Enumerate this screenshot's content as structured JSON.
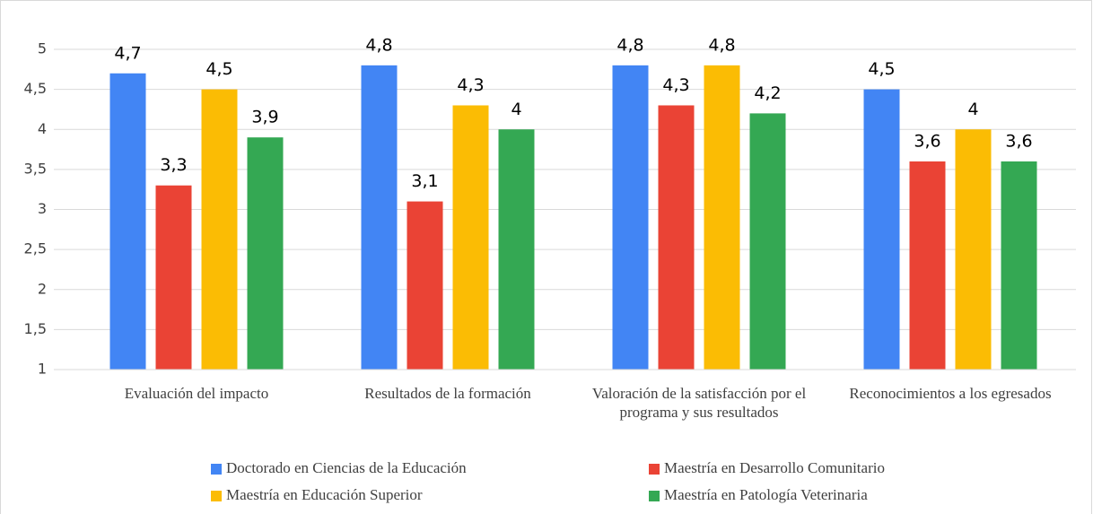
{
  "chart_data": {
    "type": "bar",
    "categories": [
      "Evaluación del impacto",
      "Resultados de la formación",
      "Valoración de la satisfacción por el programa y sus resultados",
      "Reconocimientos a los egresados"
    ],
    "series": [
      {
        "name": "Doctorado en Ciencias de la Educación",
        "color": "#4285f4",
        "values": [
          4.7,
          4.8,
          4.8,
          4.5
        ],
        "value_labels": [
          "4,7",
          "4,8",
          "4,8",
          "4,5"
        ]
      },
      {
        "name": "Maestría en Desarrollo Comunitario",
        "color": "#ea4335",
        "values": [
          3.3,
          3.1,
          4.3,
          3.6
        ],
        "value_labels": [
          "3,3",
          "3,1",
          "4,3",
          "3,6"
        ]
      },
      {
        "name": "Maestría en Educación Superior",
        "color": "#fbbc04",
        "values": [
          4.5,
          4.3,
          4.8,
          4
        ],
        "value_labels": [
          "4,5",
          "4,3",
          "4,8",
          "4"
        ]
      },
      {
        "name": "Maestría en Patología Veterinaria",
        "color": "#34a853",
        "values": [
          3.9,
          4,
          4.2,
          3.6
        ],
        "value_labels": [
          "3,9",
          "4",
          "4,2",
          "3,6"
        ]
      }
    ],
    "ylim": [
      1,
      5
    ],
    "yticks": [
      1,
      {
        "value": 1.5,
        "label": "1,5"
      },
      2,
      {
        "value": 2.5,
        "label": "2,5"
      },
      3,
      {
        "value": 3.5,
        "label": "3,5"
      },
      4,
      {
        "value": 4.5,
        "label": "4,5"
      },
      5
    ],
    "grid": true,
    "legend": "bottom"
  }
}
